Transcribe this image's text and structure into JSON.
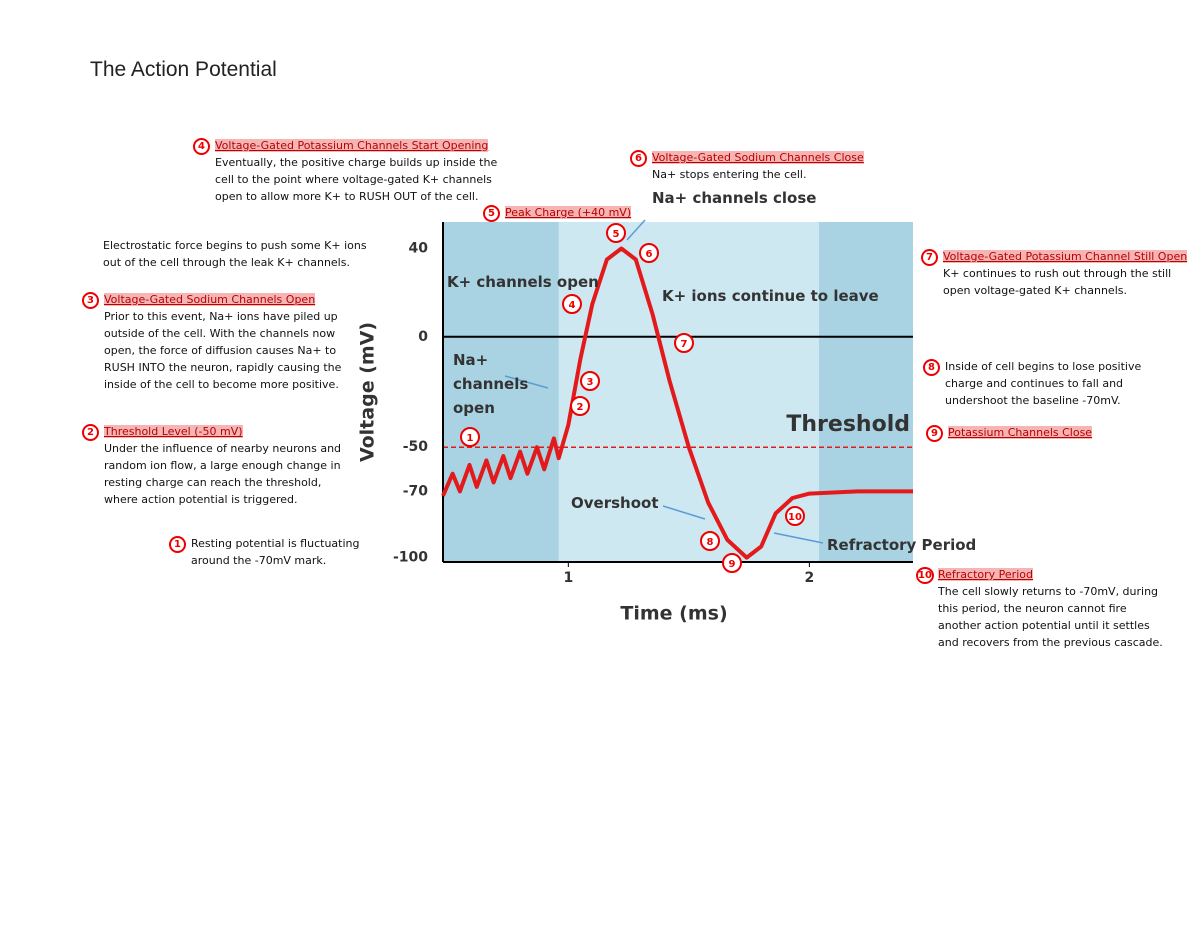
{
  "header": {
    "title": "The Action Potential"
  },
  "notes": [
    {
      "number": "4",
      "heading": "Voltage-Gated Potassium Channels Start Opening",
      "body": "Eventually, the positive charge builds up inside the cell to the point where voltage-gated K+ channels open to allow more K+ to RUSH OUT of the cell."
    },
    {
      "number": "6",
      "heading": "Voltage-Gated Sodium Channels Close",
      "body": "Na+ stops entering the cell."
    },
    {
      "number": "5",
      "heading": "Peak Charge (+40 mV)"
    },
    {
      "body": "Electrostatic force begins to push some K+ ions out of the cell through the leak K+ channels."
    },
    {
      "number": "3",
      "heading": "Voltage-Gated Sodium Channels Open",
      "body": "Prior to this event, Na+ ions have piled up outside of the cell. With the channels now open, the force of diffusion causes Na+ to RUSH INTO the neuron, rapidly causing the inside of the cell to become more positive."
    },
    {
      "number": "2",
      "heading": "Threshold Level (-50 mV)",
      "body": "Under the influence of nearby neurons and random ion flow, a large enough change in resting charge can reach the threshold, where action potential is triggered."
    },
    {
      "number": "1",
      "body": "Resting potential is fluctuating around the -70mV mark."
    },
    {
      "number": "7",
      "heading": "Voltage-Gated Potassium Channel Still Open",
      "body": "K+ continues to rush out through the still open voltage-gated K+ channels."
    },
    {
      "number": "8",
      "body": "Inside of cell begins to lose positive charge and continues to fall and undershoot the baseline -70mV."
    },
    {
      "number": "9",
      "heading": "Potassium Channels Close"
    },
    {
      "number": "10",
      "heading": "Refractory Period",
      "body": "The cell slowly returns to -70mV, during this period, the neuron cannot fire another action potential until it settles and recovers from the previous cascade."
    }
  ],
  "chart_data": {
    "type": "line",
    "x_label": "Time (ms)",
    "y_label": "Voltage (mV)",
    "xlim": [
      0.48,
      2.43
    ],
    "xticks": [
      1,
      2
    ],
    "ylim": [
      -102,
      52
    ],
    "yticks": [
      40,
      0,
      -50,
      -70,
      -100
    ],
    "reference_line": 0,
    "threshold": {
      "value": -50,
      "label": "Threshold"
    },
    "bands": [
      [
        0.48,
        0.96
      ],
      [
        2.04,
        2.43
      ]
    ],
    "x": [
      0.48,
      0.52,
      0.55,
      0.59,
      0.62,
      0.66,
      0.69,
      0.73,
      0.76,
      0.8,
      0.83,
      0.87,
      0.9,
      0.94,
      0.96,
      1.0,
      1.05,
      1.1,
      1.16,
      1.22,
      1.28,
      1.35,
      1.42,
      1.5,
      1.58,
      1.66,
      1.74,
      1.8,
      1.86,
      1.93,
      2.0,
      2.2,
      2.43
    ],
    "values": [
      -72,
      -62,
      -70,
      -58,
      -68,
      -56,
      -66,
      -54,
      -64,
      -52,
      -62,
      -50,
      -60,
      -46,
      -55,
      -40,
      -10,
      15,
      35,
      40,
      35,
      10,
      -20,
      -50,
      -75,
      -92,
      -100,
      -95,
      -80,
      -73,
      -71,
      -70,
      -70
    ],
    "color": "#e31a1c",
    "annotations": [
      "Na+ channels close",
      "K+ channels open",
      "K+ ions continue to leave",
      "Na+ channels open",
      "Overshoot",
      "Refractory Period"
    ],
    "markers": [
      "1",
      "2",
      "3",
      "4",
      "5",
      "6",
      "7",
      "8",
      "9",
      "10"
    ]
  }
}
